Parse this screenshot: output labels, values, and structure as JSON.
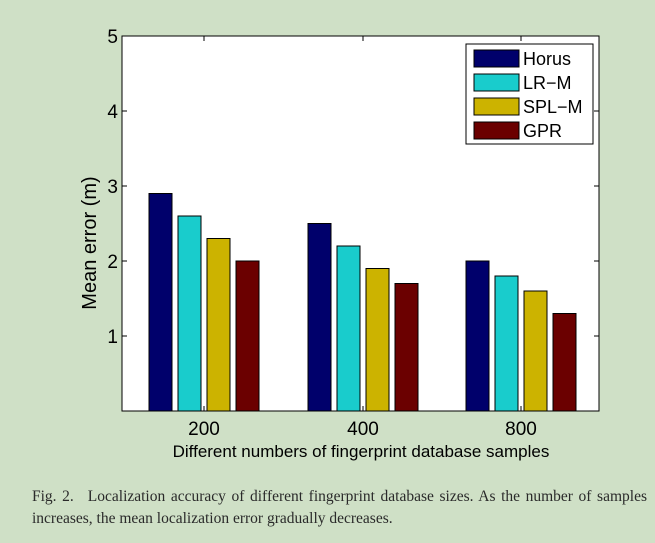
{
  "chart_data": {
    "type": "bar",
    "categories": [
      "200",
      "400",
      "800"
    ],
    "series": [
      {
        "name": "Horus",
        "values": [
          2.9,
          2.5,
          2.0
        ],
        "color": "#00006b"
      },
      {
        "name": "LR−M",
        "values": [
          2.6,
          2.2,
          1.8
        ],
        "color": "#19cccc"
      },
      {
        "name": "SPL−M",
        "values": [
          2.3,
          1.9,
          1.6
        ],
        "color": "#ccb300"
      },
      {
        "name": "GPR",
        "values": [
          2.0,
          1.7,
          1.3
        ],
        "color": "#6b0000"
      }
    ],
    "xlabel": "Different numbers of fingerprint database samples",
    "ylabel": "Mean error (m)",
    "ylim": [
      0,
      5
    ],
    "yticks": [
      "1",
      "2",
      "3",
      "4",
      "5"
    ],
    "legend_position": "top-right",
    "grid": false
  },
  "caption": {
    "label": "Fig. 2.",
    "text": "Localization accuracy of different fingerprint database sizes. As the number of samples increases, the mean localization error gradually decreases."
  }
}
